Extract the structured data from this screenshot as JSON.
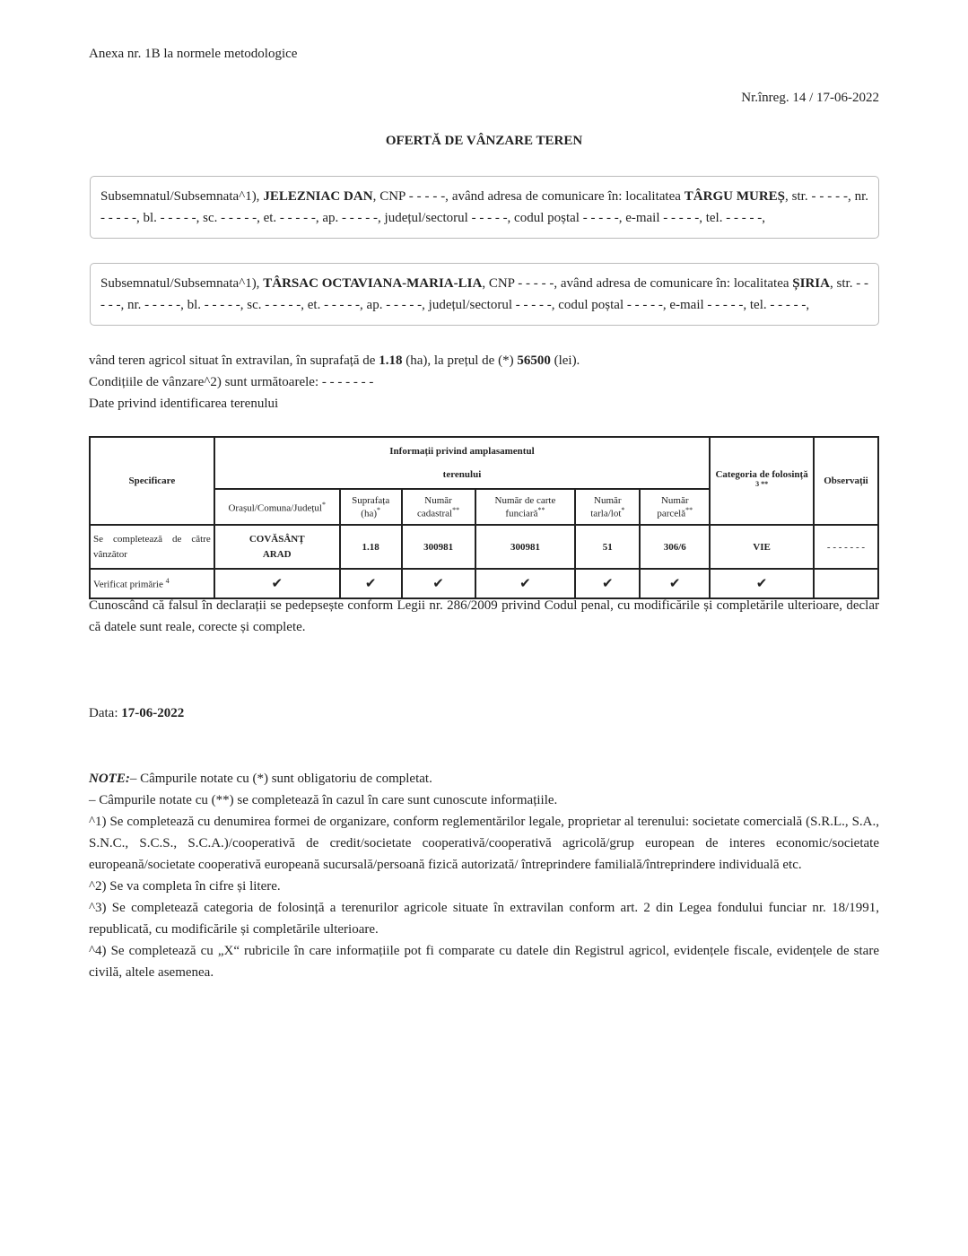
{
  "annex": "Anexa nr. 1B la normele metodologice",
  "registration": "Nr.înreg. 14 / 17-06-2022",
  "title": "OFERTĂ DE VÂNZARE TEREN",
  "seller1": {
    "pre": "Subsemnatul/Subsemnata^1), ",
    "name": "JELEZNIAC DAN",
    "mid": ", CNP - - - - -, având adresa de comunicare în: localitatea ",
    "locality": "TÂRGU MUREȘ",
    "post": ", str. - - - - -, nr. - - - - -, bl. - - - - -, sc. - - - - -, et. - - - - -, ap. - - - - -, județul/sectorul - - - - -, codul poștal - - - - -, e-mail - - - - -, tel. - - - - -,"
  },
  "seller2": {
    "pre": "Subsemnatul/Subsemnata^1), ",
    "name": "TÂRSAC OCTAVIANA-MARIA-LIA",
    "mid": ", CNP - - - - -, având adresa de comunicare în: localitatea ",
    "locality": "ȘIRIA",
    "post": ", str. - - - - -, nr. - - - - -, bl. - - - - -, sc. - - - - -, et. - - - - -, ap. - - - - -, județul/sectorul - - - - -, codul poștal - - - - -, e-mail - - - - -, tel. - - - - -,"
  },
  "sale": {
    "pre": "vând teren agricol situat în extravilan, în suprafață de ",
    "area": "1.18",
    "mid": " (ha), la prețul de (*) ",
    "price": "56500",
    "post": " (lei)."
  },
  "conditions": "Condițiile de vânzare^2) sunt următoarele: - - - - - - -",
  "identification": "Date privind identificarea terenului",
  "table": {
    "h_spec": "Specificare",
    "h_info": "Informații privind amplasamentul",
    "h_info2": "terenului",
    "h_cat": "Categoria de folosință",
    "h_cat_sup": "3 **",
    "h_obs": "Observații",
    "sub": [
      {
        "label": "Orașul/Comuna/Județul",
        "sup": "*"
      },
      {
        "label": "Suprafața (ha)",
        "sup": "*"
      },
      {
        "label": "Număr cadastral",
        "sup": "**"
      },
      {
        "label": "Număr de carte funciară",
        "sup": "**"
      },
      {
        "label": "Număr tarla/lot",
        "sup": "*"
      },
      {
        "label": "Număr parcelă",
        "sup": "**"
      }
    ],
    "row1": {
      "label": "Se completează de către vânzător",
      "locality": "COVĂSÂNȚ",
      "county": "ARAD",
      "area": "1.18",
      "cadastral": "300981",
      "land_book": "300981",
      "lot": "51",
      "parcel": "306/6",
      "category": "VIE",
      "obs": "- - - - - - -"
    },
    "row2": {
      "label": "Verificat primărie",
      "sup": "4",
      "check": "✔"
    }
  },
  "declaration": "Cunoscând că falsul în declarații se pedepsește conform Legii nr. 286/2009 privind Codul penal, cu modificările și completările ulterioare, declar că datele sunt reale, corecte și complete.",
  "date_label": "Data: ",
  "date": "17-06-2022",
  "notes": {
    "label": "NOTE:",
    "n1": "– Câmpurile notate cu (*) sunt obligatoriu de completat.",
    "n2": "– Câmpurile notate cu (**) se completează în cazul în care sunt cunoscute informațiile.",
    "n3": "^1) Se completează cu denumirea formei de organizare, conform reglementărilor legale, proprietar al terenului: societate comercială (S.R.L., S.A., S.N.C., S.C.S., S.C.A.)/cooperativă de credit/societate cooperativă/cooperativă agricolă/grup european de interes economic/societate europeană/societate cooperativă europeană sucursală/persoană fizică autorizată/ întreprindere familială/întreprindere individuală etc.",
    "n4": "^2) Se va completa în cifre și litere.",
    "n5": "^3) Se completează categoria de folosință a terenurilor agricole situate în extravilan conform art. 2 din Legea fondului funciar nr. 18/1991, republicată, cu modificările și completările ulterioare.",
    "n6": "^4) Se completează cu „X“ rubricile în care informațiile pot fi comparate cu datele din Registrul agricol, evidențele fiscale, evidențele de stare civilă, altele asemenea."
  }
}
